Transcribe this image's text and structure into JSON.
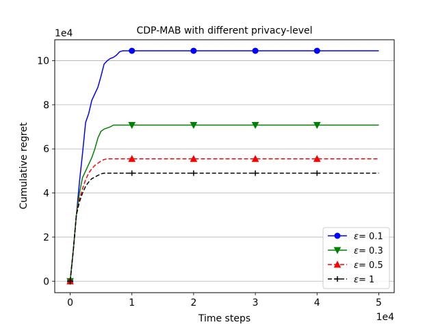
{
  "chart_data": {
    "type": "line",
    "title": "CDP-MAB with different privacy-level",
    "xlabel": "Time steps",
    "ylabel": "Cumulative regret",
    "x_scale_label": "1e4",
    "y_scale_label": "1e4",
    "xlim": [
      -0.25,
      5.25
    ],
    "ylim": [
      -0.52,
      10.95
    ],
    "x_ticks": [
      0,
      1,
      2,
      3,
      4,
      5
    ],
    "x_tick_labels": [
      "0",
      "1",
      "2",
      "3",
      "4",
      "5"
    ],
    "y_ticks": [
      0,
      2,
      4,
      6,
      8,
      10
    ],
    "y_tick_labels": [
      "0",
      "2",
      "4",
      "6",
      "8",
      "10"
    ],
    "grid": "horizontal",
    "legend_position": "lower-right",
    "marker_x": [
      0,
      1,
      2,
      3,
      4
    ],
    "series": [
      {
        "name": "ε= 0.1",
        "legend_prefix": "ε",
        "legend_value": "= 0.1",
        "color": "#0000ff",
        "dash": "solid",
        "marker": "circle",
        "x": [
          0,
          0.05,
          0.1,
          0.15,
          0.2,
          0.25,
          0.3,
          0.35,
          0.4,
          0.45,
          0.5,
          0.55,
          0.6,
          0.65,
          0.7,
          0.75,
          0.8,
          0.85,
          0.9,
          0.95,
          1.0,
          5.0
        ],
        "y": [
          0,
          1.4,
          3.0,
          4.5,
          5.8,
          7.2,
          7.6,
          8.2,
          8.5,
          8.8,
          9.3,
          9.85,
          10.0,
          10.1,
          10.15,
          10.25,
          10.4,
          10.45,
          10.45,
          10.45,
          10.45,
          10.45
        ]
      },
      {
        "name": "ε= 0.3",
        "legend_prefix": "ε",
        "legend_value": "= 0.3",
        "color": "#008000",
        "dash": "solid",
        "marker": "triangle-down",
        "x": [
          0,
          0.05,
          0.1,
          0.15,
          0.2,
          0.25,
          0.3,
          0.35,
          0.4,
          0.45,
          0.5,
          0.55,
          0.6,
          0.65,
          0.7,
          0.75,
          1.0,
          5.0
        ],
        "y": [
          0,
          1.4,
          3.0,
          4.0,
          4.7,
          5.0,
          5.3,
          5.6,
          6.0,
          6.5,
          6.8,
          6.9,
          6.95,
          7.0,
          7.08,
          7.08,
          7.08,
          7.08
        ]
      },
      {
        "name": "ε= 0.5",
        "legend_prefix": "ε",
        "legend_value": "= 0.5",
        "color": "#ff0000",
        "dash": "dashed",
        "marker": "triangle-up",
        "x": [
          0,
          0.05,
          0.1,
          0.15,
          0.2,
          0.25,
          0.3,
          0.35,
          0.4,
          0.45,
          0.5,
          0.55,
          0.6,
          1.0,
          5.0
        ],
        "y": [
          0,
          1.4,
          3.0,
          3.7,
          4.2,
          4.6,
          4.9,
          5.1,
          5.25,
          5.35,
          5.45,
          5.52,
          5.55,
          5.55,
          5.55
        ]
      },
      {
        "name": "ε= 1",
        "legend_prefix": "ε",
        "legend_value": "= 1",
        "color": "#000000",
        "dash": "dashed",
        "marker": "plus",
        "x": [
          0,
          0.05,
          0.1,
          0.15,
          0.2,
          0.25,
          0.3,
          0.35,
          0.4,
          0.45,
          0.5,
          0.55,
          0.6,
          1.0,
          5.0
        ],
        "y": [
          0,
          1.4,
          3.0,
          3.6,
          4.0,
          4.3,
          4.5,
          4.65,
          4.72,
          4.8,
          4.87,
          4.9,
          4.9,
          4.9,
          4.9
        ]
      }
    ]
  }
}
